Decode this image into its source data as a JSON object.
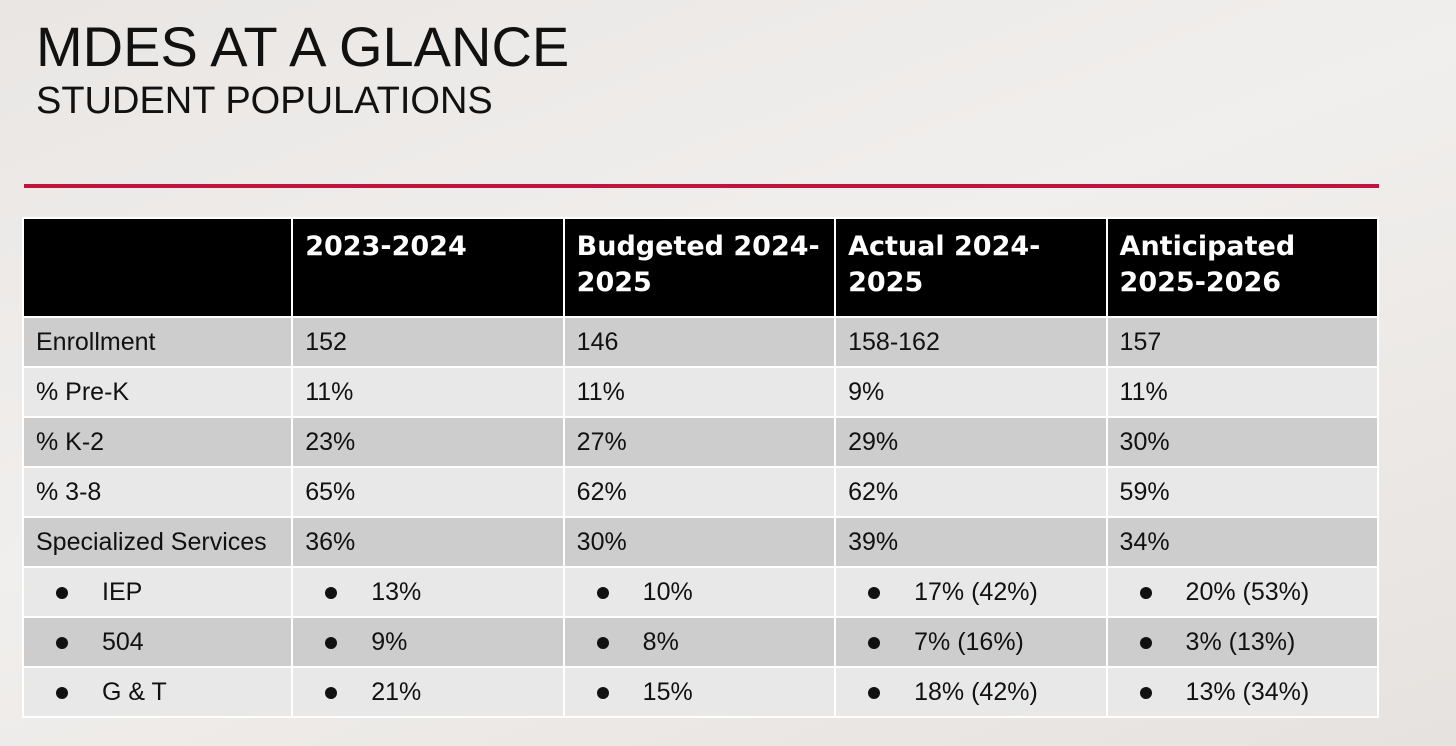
{
  "slide": {
    "title": "MDES AT A GLANCE",
    "subtitle": "STUDENT POPULATIONS",
    "accent_color": "#c0143c"
  },
  "table": {
    "headers": [
      "",
      "2023-2024",
      "Budgeted 2024-2025",
      "Actual 2024-2025",
      "Anticipated 2025-2026"
    ],
    "rows": [
      {
        "label": "Enrollment",
        "values": [
          "152",
          "146",
          "158-162",
          "157"
        ]
      },
      {
        "label": "% Pre-K",
        "values": [
          "11%",
          "11%",
          "9%",
          "11%"
        ]
      },
      {
        "label": "% K-2",
        "values": [
          "23%",
          "27%",
          "29%",
          "30%"
        ]
      },
      {
        "label": "% 3-8",
        "values": [
          "65%",
          "62%",
          "62%",
          "59%"
        ]
      },
      {
        "label": "Specialized Services",
        "values": [
          "36%",
          "30%",
          "39%",
          "34%"
        ]
      },
      {
        "label": "IEP",
        "values": [
          "13%",
          "10%",
          "17% (42%)",
          "20% (53%)"
        ]
      },
      {
        "label": "504",
        "values": [
          "9%",
          "8%",
          "7% (16%)",
          "3% (13%)"
        ]
      },
      {
        "label": "G & T",
        "values": [
          "21%",
          "15%",
          "18% (42%)",
          "13% (34%)"
        ]
      }
    ]
  }
}
